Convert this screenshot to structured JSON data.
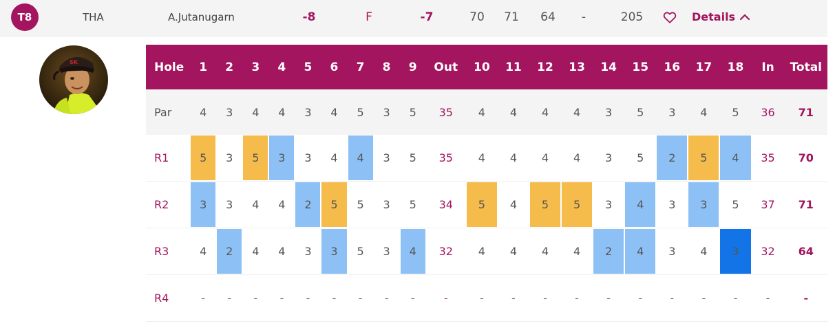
{
  "summary": {
    "position": "T8",
    "country": "THA",
    "player": "A.Jutanugarn",
    "to_par": "-8",
    "thru": "F",
    "today": "-7",
    "r1": "70",
    "r2": "71",
    "r3": "64",
    "r4": "-",
    "total": "205",
    "favorite_icon": "heart-outline-icon",
    "details_label": "Details",
    "details_icon": "chevron-up-icon"
  },
  "colors": {
    "brand": "#a3155e",
    "birdie": "#8dc0f5",
    "bogey": "#f5bc4c",
    "eagle": "#1374e8"
  },
  "scorecard": {
    "header": [
      "Hole",
      "1",
      "2",
      "3",
      "4",
      "5",
      "6",
      "7",
      "8",
      "9",
      "Out",
      "10",
      "11",
      "12",
      "13",
      "14",
      "15",
      "16",
      "17",
      "18",
      "In",
      "Total"
    ],
    "par": {
      "label": "Par",
      "holes": [
        "4",
        "3",
        "4",
        "4",
        "3",
        "4",
        "5",
        "3",
        "5",
        "4",
        "4",
        "4",
        "4",
        "3",
        "5",
        "3",
        "4",
        "5"
      ],
      "out": "35",
      "in": "36",
      "total": "71"
    },
    "rounds": [
      {
        "label": "R1",
        "holes": [
          "5",
          "3",
          "5",
          "3",
          "3",
          "4",
          "4",
          "3",
          "5",
          "4",
          "4",
          "4",
          "4",
          "3",
          "5",
          "2",
          "5",
          "4"
        ],
        "out": "35",
        "in": "35",
        "total": "70"
      },
      {
        "label": "R2",
        "holes": [
          "3",
          "3",
          "4",
          "4",
          "2",
          "5",
          "5",
          "3",
          "5",
          "5",
          "4",
          "5",
          "5",
          "3",
          "4",
          "3",
          "3",
          "5"
        ],
        "out": "34",
        "in": "37",
        "total": "71"
      },
      {
        "label": "R3",
        "holes": [
          "4",
          "2",
          "4",
          "4",
          "3",
          "3",
          "5",
          "3",
          "4",
          "4",
          "4",
          "4",
          "4",
          "2",
          "4",
          "3",
          "4",
          "3"
        ],
        "out": "32",
        "in": "32",
        "total": "64"
      },
      {
        "label": "R4",
        "holes": [
          "-",
          "-",
          "-",
          "-",
          "-",
          "-",
          "-",
          "-",
          "-",
          "-",
          "-",
          "-",
          "-",
          "-",
          "-",
          "-",
          "-",
          "-"
        ],
        "out": "-",
        "in": "-",
        "total": "-"
      }
    ]
  }
}
